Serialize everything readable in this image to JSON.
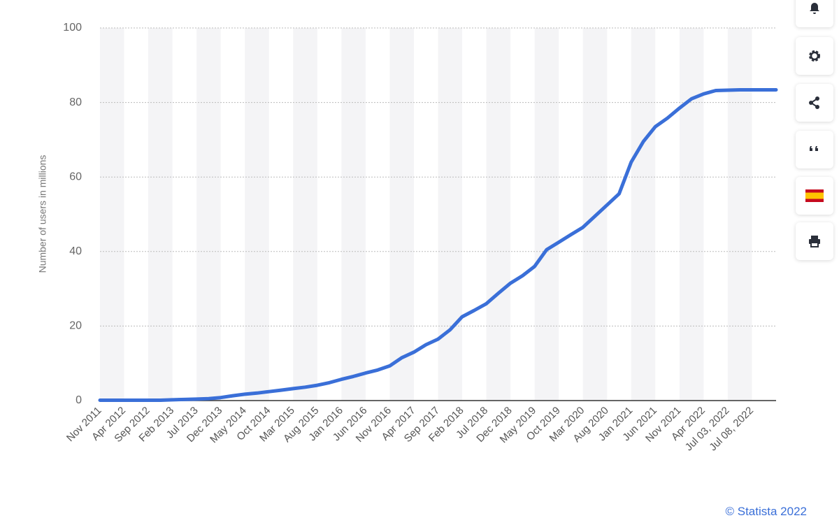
{
  "chart_data": {
    "type": "line",
    "y_label": "Number of users in millions",
    "categories": [
      "Nov 2011",
      null,
      "Apr 2012",
      null,
      "Sep 2012",
      null,
      "Feb 2013",
      null,
      "Jul 2013",
      null,
      "Dec 2013",
      null,
      "May 2014",
      null,
      "Oct 2014",
      null,
      "Mar 2015",
      null,
      "Aug 2015",
      null,
      "Jan 2016",
      null,
      "Jun 2016",
      null,
      "Nov 2016",
      null,
      "Apr 2017",
      null,
      "Sep 2017",
      null,
      "Feb 2018",
      null,
      "Jul 2018",
      null,
      "Dec 2018",
      null,
      "May 2019",
      null,
      "Oct 2019",
      null,
      "Mar 2020",
      null,
      "Aug 2020",
      null,
      "Jan 2021",
      null,
      "Jun 2021",
      null,
      "Nov 2021",
      null,
      "Apr 2022",
      null,
      "Jul 03, 2022",
      null,
      "Jul 08, 2022",
      null,
      null
    ],
    "values": [
      0.1,
      0.1,
      0.1,
      0.1,
      0.1,
      0.1,
      0.2,
      0.3,
      0.4,
      0.5,
      0.8,
      1.3,
      1.7,
      2.0,
      2.4,
      2.8,
      3.2,
      3.6,
      4.1,
      4.8,
      5.7,
      6.5,
      7.4,
      8.2,
      9.3,
      11.5,
      13.0,
      15.0,
      16.5,
      19.0,
      22.5,
      24.2,
      26.0,
      28.8,
      31.5,
      33.5,
      36.0,
      40.5,
      42.5,
      44.5,
      46.5,
      49.5,
      52.5,
      55.5,
      64.0,
      69.5,
      73.5,
      75.8,
      78.5,
      81.0,
      82.3,
      83.2,
      83.3,
      83.4,
      83.4,
      83.4,
      83.4
    ],
    "color": "#3a6fd8",
    "ylim": [
      0,
      100
    ],
    "yticks": [
      0,
      20,
      40,
      60,
      80,
      100
    ],
    "grid": true
  },
  "credit": "© Statista 2022"
}
